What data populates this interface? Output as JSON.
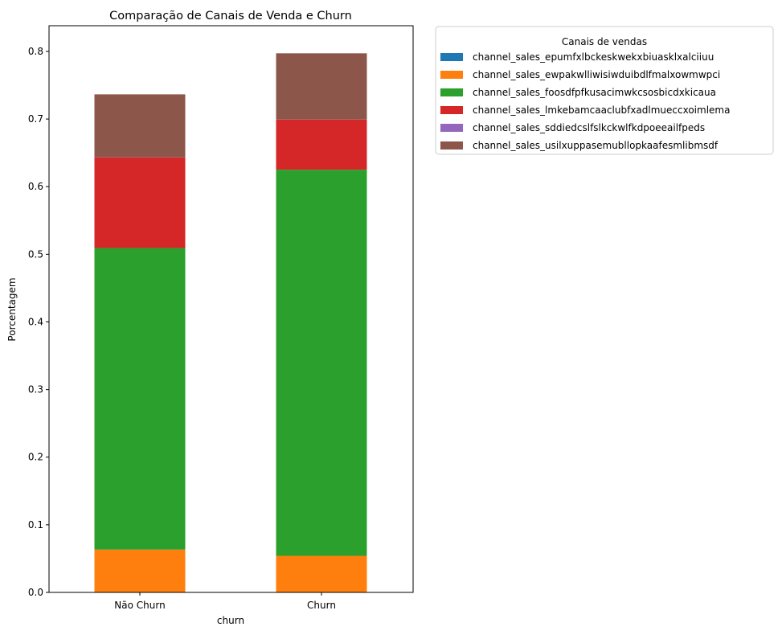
{
  "chart_data": {
    "type": "bar",
    "stacked": true,
    "title": "Comparação de Canais de Venda e Churn",
    "xlabel": "churn",
    "ylabel": "Porcentagem",
    "ylim": [
      0,
      0.838
    ],
    "yticks": [
      0.0,
      0.1,
      0.2,
      0.3,
      0.4,
      0.5,
      0.6,
      0.7,
      0.8
    ],
    "ytick_labels": [
      "0.0",
      "0.1",
      "0.2",
      "0.3",
      "0.4",
      "0.5",
      "0.6",
      "0.7",
      "0.8"
    ],
    "categories": [
      "Não Churn",
      "Churn"
    ],
    "legend": {
      "title": "Canais de vendas",
      "placement": "outside-top-right"
    },
    "series": [
      {
        "name": "channel_sales_epumfxlbckeskwekxbiuasklxalciiuu",
        "color": "#1f77b4",
        "values": [
          0.0003,
          0.0001
        ]
      },
      {
        "name": "channel_sales_ewpakwlliwisiwduibdlfmalxowmwpci",
        "color": "#ff7f0e",
        "values": [
          0.063,
          0.054
        ]
      },
      {
        "name": "channel_sales_foosdfpfkusacimwkcsosbicdxkicaua",
        "color": "#2ca02c",
        "values": [
          0.446,
          0.571
        ]
      },
      {
        "name": "channel_sales_lmkebamcaaclubfxadlmueccxoimlema",
        "color": "#d62728",
        "values": [
          0.134,
          0.074
        ]
      },
      {
        "name": "channel_sales_sddiedcslfslkckwlfkdpoeeailfpeds",
        "color": "#9467bd",
        "values": [
          0.0002,
          0.0001
        ]
      },
      {
        "name": "channel_sales_usilxuppasemubllopkaafesmlibmsdf",
        "color": "#8c564b",
        "values": [
          0.093,
          0.098
        ]
      }
    ]
  }
}
